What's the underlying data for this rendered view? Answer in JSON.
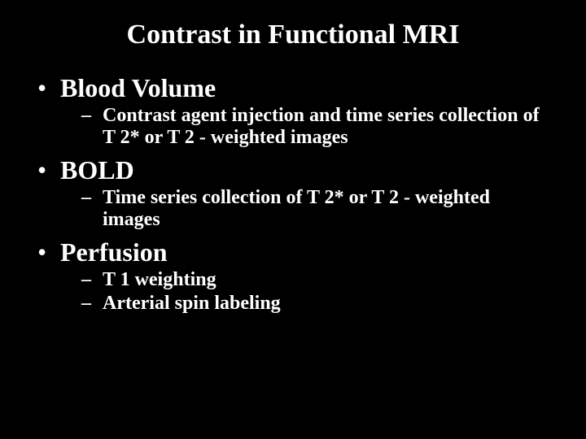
{
  "slide": {
    "background_color": "#000000",
    "text_color": "#ffffff",
    "font_family": "Times New Roman",
    "title": "Contrast in Functional MRI",
    "title_fontsize": 34,
    "l1_fontsize": 32,
    "l2_fontsize": 24,
    "bullet_char": "•",
    "dash_char": "–",
    "items": [
      {
        "label": "Blood Volume",
        "subs": [
          "Contrast agent injection and time series collection of T 2* or T 2 - weighted images"
        ]
      },
      {
        "label": "BOLD",
        "subs": [
          "Time series collection of T 2* or T 2 - weighted images"
        ]
      },
      {
        "label": "Perfusion",
        "subs": [
          "T 1 weighting",
          "Arterial spin labeling"
        ]
      }
    ]
  }
}
